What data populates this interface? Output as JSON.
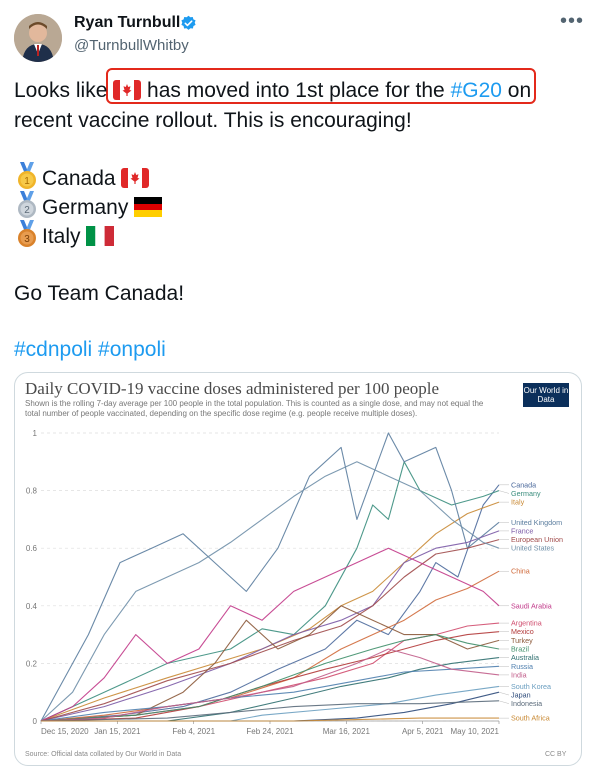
{
  "author": {
    "name": "Ryan Turnbull",
    "handle": "@TurnbullWhitby",
    "verified": true,
    "avatar_icon": "profile-photo"
  },
  "tweet": {
    "line1_pre": "Looks like ",
    "line1_post": " has moved into 1st place for the ",
    "line1_hashtag": "#G20",
    "line1_end": " on",
    "line2": "recent vaccine rollout.  This is encouraging!",
    "rankings": [
      {
        "rank": "1",
        "country": "Canada",
        "medal_icon": "gold-medal-icon",
        "flag_icon": "canada-flag-icon"
      },
      {
        "rank": "2",
        "country": "Germany",
        "medal_icon": "silver-medal-icon",
        "flag_icon": "germany-flag-icon"
      },
      {
        "rank": "3",
        "country": "Italy",
        "medal_icon": "bronze-medal-icon",
        "flag_icon": "italy-flag-icon"
      }
    ],
    "closing": "Go Team Canada!",
    "hashtags": "#cdnpoli #onpoli",
    "highlight_color": "#e3291b",
    "link_color": "#1d9bf0"
  },
  "chart": {
    "title": "Daily COVID-19 vaccine doses administered per 100 people",
    "subtitle": "Shown is the rolling 7-day average per 100 people in the total population. This is counted as a single dose, and may not equal the total number of people vaccinated, depending on the specific dose regime (e.g. people receive multiple doses).",
    "logo": "Our World in Data",
    "source": "Source: Official data collated by Our World in Data",
    "license": "CC BY"
  },
  "chart_data": {
    "type": "line",
    "x_ticks": [
      "Dec 15, 2020",
      "Jan 15, 2021",
      "Feb 4, 2021",
      "Feb 24, 2021",
      "Mar 16, 2021",
      "Apr 5, 2021",
      "May 10, 2021"
    ],
    "y_ticks": [
      "0",
      "0.2",
      "0.4",
      "0.6",
      "0.8",
      "1"
    ],
    "ylim": [
      0,
      1
    ],
    "grid": true,
    "series": [
      {
        "name": "Canada",
        "color": "#4c6a9c",
        "end": 0.82,
        "points": [
          [
            0,
            0
          ],
          [
            25,
            0.02
          ],
          [
            45,
            0.05
          ],
          [
            60,
            0.1
          ],
          [
            75,
            0.18
          ],
          [
            90,
            0.25
          ],
          [
            100,
            0.35
          ],
          [
            110,
            0.3
          ],
          [
            120,
            0.45
          ],
          [
            125,
            0.55
          ],
          [
            132,
            0.5
          ],
          [
            140,
            0.75
          ],
          [
            145,
            0.82
          ]
        ]
      },
      {
        "name": "Germany",
        "color": "#3b8e7e",
        "end": 0.8,
        "points": [
          [
            0,
            0
          ],
          [
            20,
            0.1
          ],
          [
            40,
            0.2
          ],
          [
            60,
            0.25
          ],
          [
            70,
            0.32
          ],
          [
            80,
            0.3
          ],
          [
            90,
            0.4
          ],
          [
            100,
            0.6
          ],
          [
            105,
            0.75
          ],
          [
            110,
            0.7
          ],
          [
            115,
            0.9
          ],
          [
            120,
            0.8
          ],
          [
            130,
            0.75
          ],
          [
            140,
            0.78
          ],
          [
            145,
            0.8
          ]
        ]
      },
      {
        "name": "Italy",
        "color": "#c98a35",
        "end": 0.76,
        "points": [
          [
            0,
            0
          ],
          [
            20,
            0.08
          ],
          [
            40,
            0.15
          ],
          [
            55,
            0.2
          ],
          [
            70,
            0.25
          ],
          [
            85,
            0.32
          ],
          [
            95,
            0.4
          ],
          [
            105,
            0.45
          ],
          [
            115,
            0.55
          ],
          [
            125,
            0.65
          ],
          [
            135,
            0.72
          ],
          [
            145,
            0.76
          ]
        ]
      },
      {
        "name": "United Kingdom",
        "color": "#5b7d9e",
        "end": 0.69,
        "points": [
          [
            0,
            0
          ],
          [
            15,
            0.3
          ],
          [
            25,
            0.55
          ],
          [
            35,
            0.6
          ],
          [
            45,
            0.65
          ],
          [
            55,
            0.55
          ],
          [
            65,
            0.45
          ],
          [
            75,
            0.6
          ],
          [
            85,
            0.85
          ],
          [
            95,
            0.95
          ],
          [
            100,
            0.7
          ],
          [
            110,
            1.0
          ],
          [
            115,
            0.9
          ],
          [
            125,
            0.95
          ],
          [
            130,
            0.8
          ],
          [
            135,
            0.6
          ],
          [
            145,
            0.69
          ]
        ]
      },
      {
        "name": "France",
        "color": "#7b5aa6",
        "end": 0.66,
        "points": [
          [
            0,
            0
          ],
          [
            20,
            0.05
          ],
          [
            40,
            0.12
          ],
          [
            60,
            0.2
          ],
          [
            80,
            0.3
          ],
          [
            95,
            0.35
          ],
          [
            105,
            0.4
          ],
          [
            115,
            0.55
          ],
          [
            125,
            0.6
          ],
          [
            135,
            0.62
          ],
          [
            145,
            0.66
          ]
        ]
      },
      {
        "name": "European Union",
        "color": "#a04b4b",
        "end": 0.63,
        "points": [
          [
            0,
            0
          ],
          [
            20,
            0.06
          ],
          [
            40,
            0.14
          ],
          [
            60,
            0.2
          ],
          [
            80,
            0.28
          ],
          [
            95,
            0.33
          ],
          [
            105,
            0.4
          ],
          [
            115,
            0.5
          ],
          [
            125,
            0.58
          ],
          [
            135,
            0.6
          ],
          [
            145,
            0.63
          ]
        ]
      },
      {
        "name": "United States",
        "color": "#6f8fa8",
        "end": 0.6,
        "points": [
          [
            0,
            0
          ],
          [
            10,
            0.1
          ],
          [
            20,
            0.3
          ],
          [
            30,
            0.45
          ],
          [
            40,
            0.5
          ],
          [
            50,
            0.55
          ],
          [
            60,
            0.62
          ],
          [
            70,
            0.7
          ],
          [
            80,
            0.78
          ],
          [
            90,
            0.85
          ],
          [
            100,
            0.9
          ],
          [
            110,
            0.85
          ],
          [
            120,
            0.8
          ],
          [
            130,
            0.7
          ],
          [
            140,
            0.62
          ],
          [
            145,
            0.6
          ]
        ]
      },
      {
        "name": "China",
        "color": "#d06a3b",
        "end": 0.52,
        "points": [
          [
            0,
            0
          ],
          [
            20,
            0.02
          ],
          [
            40,
            0.05
          ],
          [
            60,
            0.08
          ],
          [
            80,
            0.15
          ],
          [
            95,
            0.25
          ],
          [
            105,
            0.3
          ],
          [
            115,
            0.35
          ],
          [
            125,
            0.42
          ],
          [
            135,
            0.46
          ],
          [
            145,
            0.52
          ]
        ]
      },
      {
        "name": "Saudi Arabia",
        "color": "#c23a8a",
        "end": 0.4,
        "points": [
          [
            0,
            0
          ],
          [
            10,
            0.05
          ],
          [
            20,
            0.15
          ],
          [
            30,
            0.3
          ],
          [
            40,
            0.2
          ],
          [
            50,
            0.25
          ],
          [
            60,
            0.4
          ],
          [
            70,
            0.35
          ],
          [
            80,
            0.45
          ],
          [
            90,
            0.5
          ],
          [
            100,
            0.55
          ],
          [
            110,
            0.6
          ],
          [
            120,
            0.55
          ],
          [
            130,
            0.5
          ],
          [
            140,
            0.45
          ],
          [
            145,
            0.4
          ]
        ]
      },
      {
        "name": "Argentina",
        "color": "#d04d6e",
        "end": 0.34,
        "points": [
          [
            0,
            0
          ],
          [
            30,
            0.02
          ],
          [
            50,
            0.05
          ],
          [
            70,
            0.1
          ],
          [
            90,
            0.15
          ],
          [
            105,
            0.2
          ],
          [
            115,
            0.28
          ],
          [
            125,
            0.3
          ],
          [
            135,
            0.33
          ],
          [
            145,
            0.34
          ]
        ]
      },
      {
        "name": "Mexico",
        "color": "#b23a3a",
        "end": 0.31,
        "points": [
          [
            0,
            0
          ],
          [
            30,
            0.01
          ],
          [
            50,
            0.05
          ],
          [
            70,
            0.12
          ],
          [
            90,
            0.18
          ],
          [
            105,
            0.22
          ],
          [
            115,
            0.25
          ],
          [
            125,
            0.28
          ],
          [
            135,
            0.3
          ],
          [
            145,
            0.31
          ]
        ]
      },
      {
        "name": "Turkey",
        "color": "#8c5a3b",
        "end": 0.28,
        "points": [
          [
            0,
            0
          ],
          [
            30,
            0.02
          ],
          [
            45,
            0.1
          ],
          [
            55,
            0.2
          ],
          [
            65,
            0.35
          ],
          [
            75,
            0.25
          ],
          [
            85,
            0.3
          ],
          [
            95,
            0.4
          ],
          [
            105,
            0.35
          ],
          [
            115,
            0.3
          ],
          [
            125,
            0.3
          ],
          [
            135,
            0.25
          ],
          [
            145,
            0.28
          ]
        ]
      },
      {
        "name": "Brazil",
        "color": "#3f8f6a",
        "end": 0.25,
        "points": [
          [
            0,
            0
          ],
          [
            30,
            0.02
          ],
          [
            50,
            0.05
          ],
          [
            70,
            0.12
          ],
          [
            90,
            0.2
          ],
          [
            105,
            0.25
          ],
          [
            115,
            0.28
          ],
          [
            125,
            0.3
          ],
          [
            135,
            0.27
          ],
          [
            145,
            0.25
          ]
        ]
      },
      {
        "name": "Australia",
        "color": "#2f6f6f",
        "end": 0.22,
        "points": [
          [
            0,
            0
          ],
          [
            40,
            0
          ],
          [
            60,
            0.03
          ],
          [
            80,
            0.08
          ],
          [
            95,
            0.12
          ],
          [
            110,
            0.15
          ],
          [
            120,
            0.18
          ],
          [
            130,
            0.2
          ],
          [
            145,
            0.22
          ]
        ]
      },
      {
        "name": "Russia",
        "color": "#4f7fae",
        "end": 0.19,
        "points": [
          [
            0,
            0
          ],
          [
            20,
            0.03
          ],
          [
            40,
            0.05
          ],
          [
            60,
            0.08
          ],
          [
            80,
            0.1
          ],
          [
            100,
            0.14
          ],
          [
            115,
            0.17
          ],
          [
            130,
            0.18
          ],
          [
            145,
            0.19
          ]
        ]
      },
      {
        "name": "India",
        "color": "#c15d8a",
        "end": 0.16,
        "points": [
          [
            0,
            0
          ],
          [
            20,
            0.01
          ],
          [
            40,
            0.05
          ],
          [
            60,
            0.08
          ],
          [
            80,
            0.12
          ],
          [
            100,
            0.2
          ],
          [
            110,
            0.25
          ],
          [
            120,
            0.22
          ],
          [
            130,
            0.18
          ],
          [
            145,
            0.16
          ]
        ]
      },
      {
        "name": "South Korea",
        "color": "#6a9ec0",
        "end": 0.12,
        "points": [
          [
            0,
            0
          ],
          [
            60,
            0
          ],
          [
            70,
            0.02
          ],
          [
            90,
            0.04
          ],
          [
            110,
            0.06
          ],
          [
            125,
            0.09
          ],
          [
            145,
            0.12
          ]
        ]
      },
      {
        "name": "Japan",
        "color": "#2c4a7a",
        "end": 0.1,
        "points": [
          [
            0,
            0
          ],
          [
            80,
            0
          ],
          [
            100,
            0.01
          ],
          [
            115,
            0.03
          ],
          [
            130,
            0.06
          ],
          [
            145,
            0.1
          ]
        ]
      },
      {
        "name": "Indonesia",
        "color": "#5a6a7a",
        "end": 0.07,
        "points": [
          [
            0,
            0
          ],
          [
            40,
            0.01
          ],
          [
            60,
            0.03
          ],
          [
            80,
            0.05
          ],
          [
            100,
            0.06
          ],
          [
            120,
            0.06
          ],
          [
            145,
            0.07
          ]
        ]
      },
      {
        "name": "South Africa",
        "color": "#c98a35",
        "end": 0.01,
        "points": [
          [
            0,
            0
          ],
          [
            80,
            0
          ],
          [
            100,
            0.005
          ],
          [
            120,
            0.01
          ],
          [
            145,
            0.01
          ]
        ]
      }
    ]
  }
}
